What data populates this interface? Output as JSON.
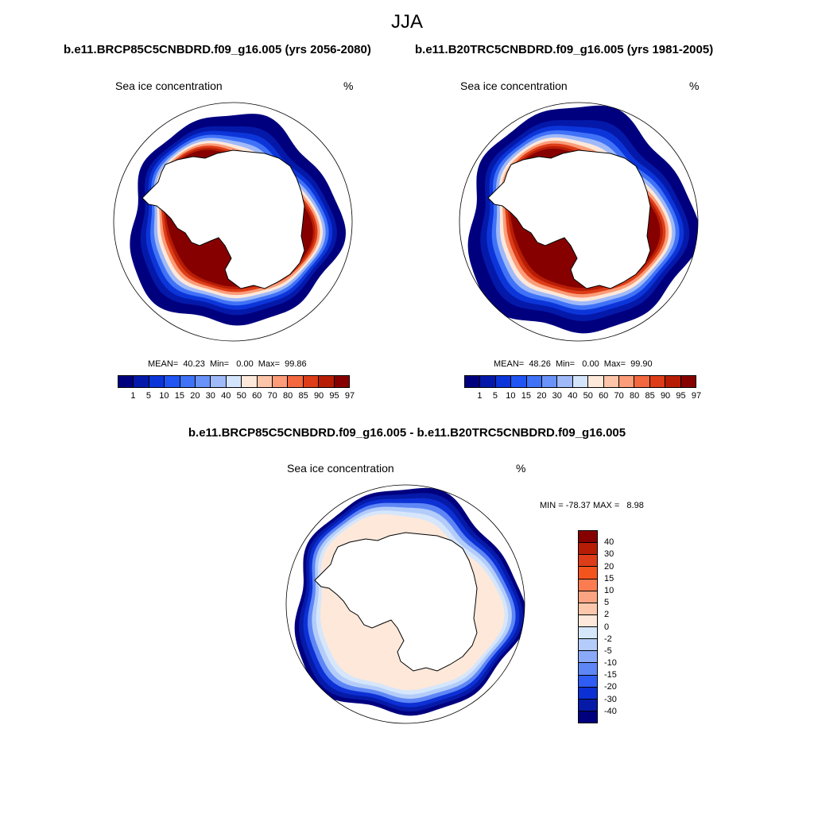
{
  "season": "JJA",
  "panels": [
    {
      "case_title": "b.e11.BRCP85C5CNBDRD.f09_g16.005 (yrs 2056-2080)",
      "variable": "Sea ice concentration",
      "units": "%",
      "mean": "40.23",
      "min": "0.00",
      "max": "99.86",
      "stats_text": "MEAN=  40.23  Min=   0.00  Max=  99.86",
      "band_scale": 0.93
    },
    {
      "case_title": "b.e11.B20TRC5CNBDRD.f09_g16.005 (yrs 1981-2005)",
      "variable": "Sea ice concentration",
      "units": "%",
      "mean": "48.26",
      "min": "0.00",
      "max": "99.90",
      "stats_text": "MEAN=  48.26  Min=   0.00  Max=  99.90",
      "band_scale": 1.0
    }
  ],
  "colorbar": {
    "levels": [
      "1",
      "5",
      "10",
      "15",
      "20",
      "30",
      "40",
      "50",
      "60",
      "70",
      "80",
      "85",
      "90",
      "95",
      "97"
    ],
    "colors": [
      "#00007f",
      "#0419aa",
      "#0c35d9",
      "#2055f4",
      "#3f72f7",
      "#6a93f9",
      "#9fb9f9",
      "#d4e4fb",
      "#fde8da",
      "#fcc4a8",
      "#fc9c78",
      "#f3683f",
      "#dd3d18",
      "#b71d05",
      "#870000"
    ]
  },
  "diff": {
    "title": "b.e11.BRCP85C5CNBDRD.f09_g16.005 - b.e11.B20TRC5CNBDRD.f09_g16.005",
    "variable": "Sea ice concentration",
    "units": "%",
    "minmax_text": "MIN = -78.37 MAX =   8.98",
    "min": -78.37,
    "max": 8.98,
    "levels": [
      "40",
      "30",
      "20",
      "15",
      "10",
      "5",
      "2",
      "0",
      "-2",
      "-5",
      "-10",
      "-15",
      "-20",
      "-30",
      "-40"
    ],
    "colors": [
      "#870000",
      "#b71d05",
      "#dd3d18",
      "#f3541e",
      "#fc7b50",
      "#fca482",
      "#fcc7ab",
      "#fde8da",
      "#d6e6fb",
      "#b3ccf9",
      "#8aaaf7",
      "#5e86f5",
      "#2f5cf2",
      "#0c30d4",
      "#061aa8",
      "#00007f"
    ]
  }
}
